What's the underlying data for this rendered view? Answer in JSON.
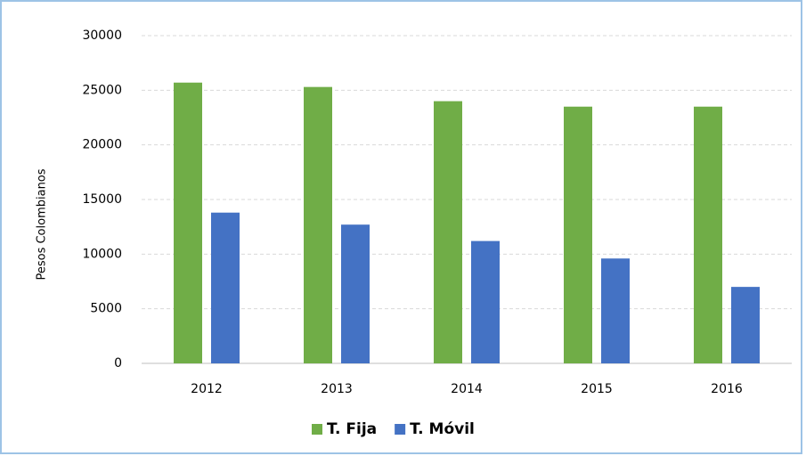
{
  "chart_data": {
    "type": "bar",
    "y_label": "Pesos Colombianos",
    "categories": [
      "2012",
      "2013",
      "2014",
      "2015",
      "2016"
    ],
    "series": [
      {
        "name": "T. Fija",
        "color": "#70ad47",
        "values": [
          25700,
          25300,
          24000,
          23500,
          23500
        ]
      },
      {
        "name": "T. Móvil",
        "color": "#4472c4",
        "values": [
          13800,
          12700,
          11200,
          9600,
          7000
        ]
      }
    ],
    "ylim": [
      0,
      30000
    ],
    "yticks": [
      0,
      5000,
      10000,
      15000,
      20000,
      25000,
      30000
    ],
    "grid": true,
    "legend": "bottom"
  }
}
